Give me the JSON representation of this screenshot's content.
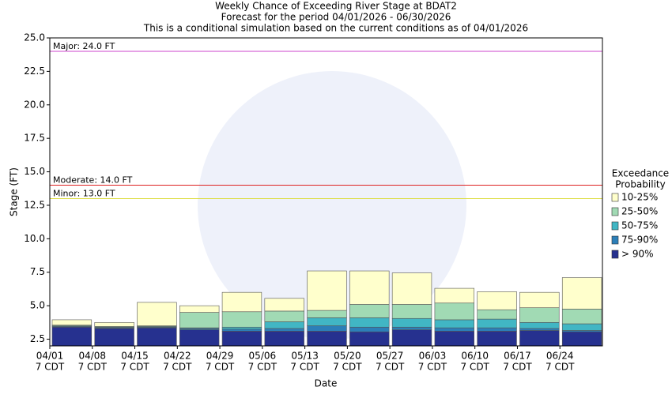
{
  "chart_data": {
    "type": "bar",
    "title": "Weekly Chance of Exceeding River Stage at BDAT2",
    "subtitle": "Forecast for the period 04/01/2026 - 06/30/2026",
    "note": "This is a conditional simulation based on the current conditions as of 04/01/2026",
    "x_label": "Date",
    "y_label": "Stage (FT)",
    "categories": [
      "04/01",
      "04/08",
      "04/15",
      "04/22",
      "04/29",
      "05/06",
      "05/13",
      "05/20",
      "05/27",
      "06/03",
      "06/10",
      "06/17",
      "06/24"
    ],
    "category_times": [
      "7 CDT",
      "7 CDT",
      "7 CDT",
      "7 CDT",
      "7 CDT",
      "7 CDT",
      "7 CDT",
      "7 CDT",
      "7 CDT",
      "7 CDT",
      "7 CDT",
      "7 CDT",
      "7 CDT"
    ],
    "series": [
      {
        "name": "> 90%",
        "color": "#26318f",
        "values": [
          3.4,
          3.3,
          3.35,
          3.2,
          3.1,
          3.1,
          3.1,
          3.05,
          3.2,
          3.1,
          3.1,
          3.15,
          3.05
        ]
      },
      {
        "name": "75-90%",
        "color": "#2c7fb8",
        "values": [
          3.45,
          3.35,
          3.4,
          3.3,
          3.25,
          3.3,
          3.5,
          3.4,
          3.4,
          3.35,
          3.35,
          3.3,
          3.15
        ]
      },
      {
        "name": "50-75%",
        "color": "#41b6c4",
        "values": [
          3.5,
          3.4,
          3.45,
          3.35,
          3.4,
          3.8,
          4.1,
          4.1,
          4.05,
          3.95,
          4.0,
          3.75,
          3.65
        ]
      },
      {
        "name": "25-50%",
        "color": "#a1dab4",
        "values": [
          3.55,
          3.45,
          3.5,
          4.5,
          4.55,
          4.6,
          4.65,
          5.1,
          5.1,
          5.2,
          4.7,
          4.85,
          4.75
        ]
      },
      {
        "name": "10-25%",
        "color": "#ffffcc",
        "values": [
          3.95,
          3.75,
          5.25,
          5.0,
          6.0,
          5.55,
          7.6,
          7.6,
          7.45,
          6.3,
          6.05,
          6.0,
          7.1
        ]
      }
    ],
    "legend_title": [
      "Exceedance",
      "Probability"
    ],
    "ylim": [
      2,
      25
    ],
    "yticks": [
      2.5,
      {
        "value": 5,
        "label": "5.0"
      },
      7.5,
      {
        "value": 10,
        "label": "10.0"
      },
      12.5,
      {
        "value": 15,
        "label": "15.0"
      },
      17.5,
      {
        "value": 20,
        "label": "20.0"
      },
      22.5,
      {
        "value": 25,
        "label": "25.0"
      }
    ],
    "thresholds": [
      {
        "label": "Major: 24.0 FT",
        "value": 24,
        "color": "#cc44cc"
      },
      {
        "label": "Moderate: 14.0 FT",
        "value": 14,
        "color": "#dd2222"
      },
      {
        "label": "Minor: 13.0 FT",
        "value": 13,
        "color": "#dddd44"
      }
    ]
  }
}
